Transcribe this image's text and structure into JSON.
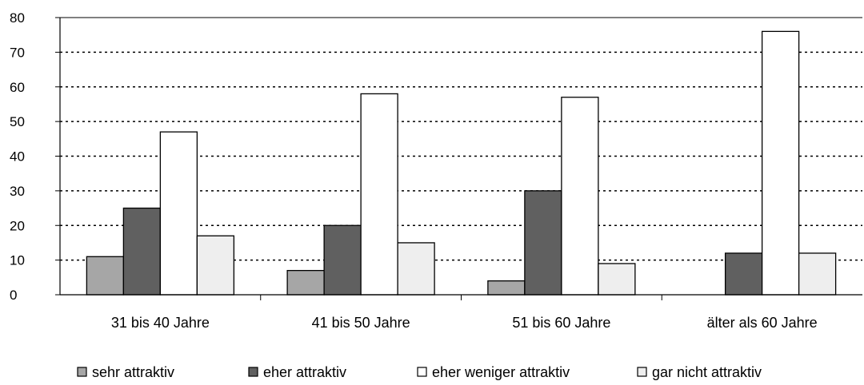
{
  "chart_data": {
    "type": "bar",
    "categories": [
      "31 bis 40 Jahre",
      "41 bis 50 Jahre",
      "51 bis 60 Jahre",
      "älter als 60 Jahre"
    ],
    "series": [
      {
        "name": "sehr attraktiv",
        "values": [
          11,
          7,
          4,
          0
        ],
        "color": "#a6a6a6"
      },
      {
        "name": "eher attraktiv",
        "values": [
          25,
          20,
          30,
          12
        ],
        "color": "#606060"
      },
      {
        "name": "eher weniger attraktiv",
        "values": [
          47,
          58,
          57,
          76
        ],
        "color": "#ffffff"
      },
      {
        "name": "gar nicht attraktiv",
        "values": [
          17,
          15,
          9,
          12
        ],
        "color": "#eeeeee"
      }
    ],
    "ylim": [
      0,
      80
    ],
    "yticks": [
      "0",
      "10",
      "20",
      "30",
      "40",
      "50",
      "60",
      "70",
      "80"
    ],
    "grid": "dotted horizontal",
    "legend_position": "bottom"
  }
}
